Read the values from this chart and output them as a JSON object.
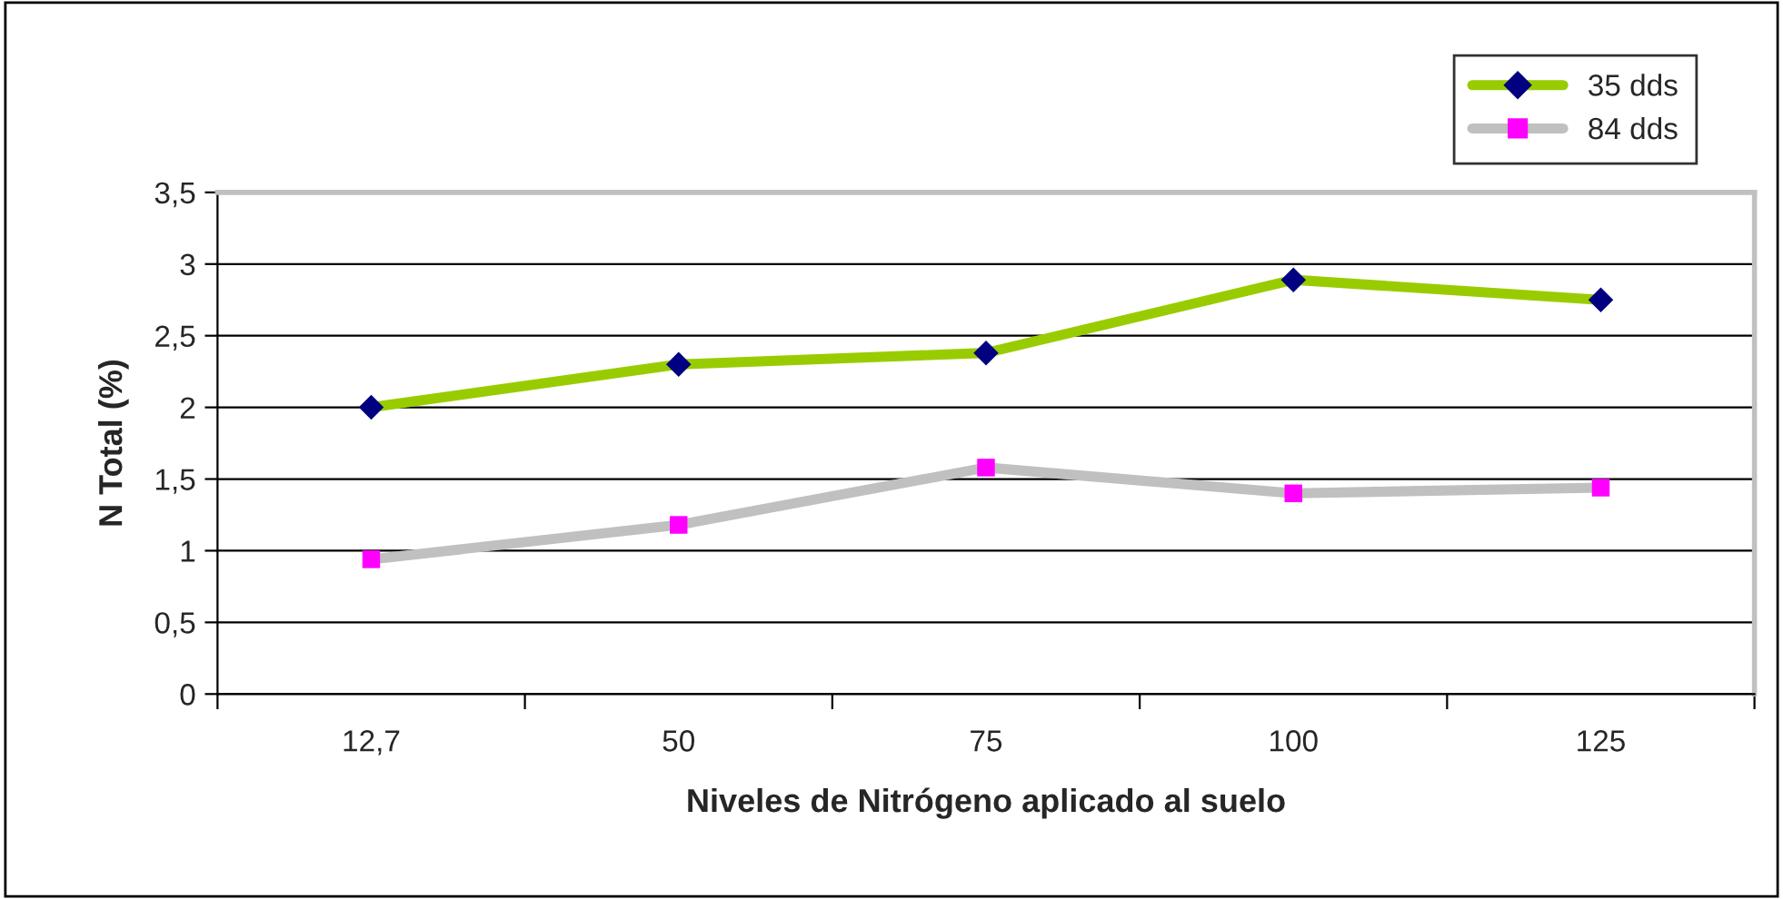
{
  "chart_data": {
    "type": "line",
    "xlabel": "Niveles de Nitrógeno aplicado al suelo",
    "ylabel": "N Total (%)",
    "categories": [
      "12,7",
      "50",
      "75",
      "100",
      "125"
    ],
    "series": [
      {
        "name": "35 dds",
        "color": "#99cc00",
        "marker": "diamond",
        "colors": [
          "#000080",
          "#000080",
          "#000080",
          "#000080",
          "#000080"
        ],
        "values": [
          2.0,
          2.3,
          2.38,
          2.89,
          2.75
        ]
      },
      {
        "name": "84 dds",
        "color": "#c0c0c0",
        "marker": "square",
        "colors": [
          "#ff00ff",
          "#ff00ff",
          "#ff00ff",
          "#ff00ff",
          "#ff00ff"
        ],
        "values": [
          0.94,
          1.18,
          1.58,
          1.4,
          1.44
        ]
      }
    ],
    "ylim": [
      0,
      3.5
    ],
    "yticks": [
      0,
      {
        "value": 0.5,
        "label": "0,5"
      },
      1,
      {
        "value": 1.5,
        "label": "1,5"
      },
      2,
      {
        "value": 2.5,
        "label": "2,5"
      },
      3,
      {
        "value": 3.5,
        "label": "3,5"
      }
    ],
    "grid": "y",
    "legend": "top right",
    "line_style": "solid"
  }
}
